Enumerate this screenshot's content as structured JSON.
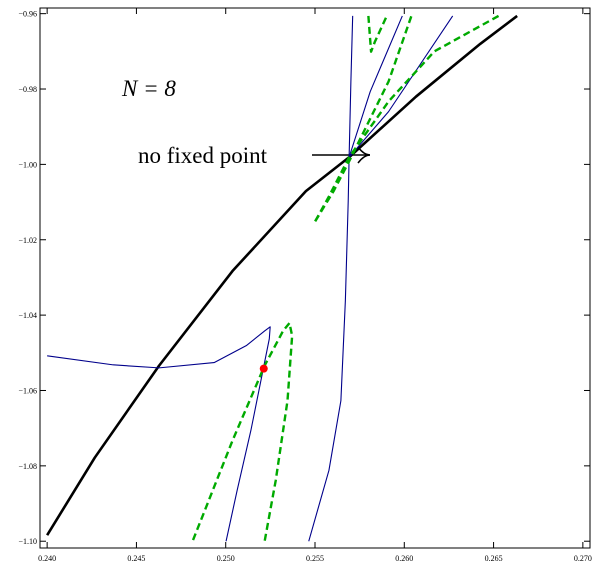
{
  "chart_data": {
    "type": "line",
    "annotations": [
      "N = 8",
      "no fixed point"
    ],
    "xlim": [
      0.2396,
      0.2704
    ],
    "ylim": [
      -1.1018,
      -0.9585
    ],
    "xticks": [
      {
        "value": 0.24,
        "label": "0.240"
      },
      {
        "value": 0.245,
        "label": "0.245"
      },
      {
        "value": 0.25,
        "label": "0.250"
      },
      {
        "value": 0.255,
        "label": "0.255"
      },
      {
        "value": 0.26,
        "label": "0.260"
      },
      {
        "value": 0.265,
        "label": "0.265"
      },
      {
        "value": 0.27,
        "label": "0.270"
      }
    ],
    "yticks": [
      {
        "value": -0.96,
        "label": "−0.96"
      },
      {
        "value": -0.98,
        "label": "−0.98"
      },
      {
        "value": -1.0,
        "label": "−1.00"
      },
      {
        "value": -1.02,
        "label": "−1.02"
      },
      {
        "value": -1.04,
        "label": "−1.04"
      },
      {
        "value": -1.06,
        "label": "−1.06"
      },
      {
        "value": -1.08,
        "label": "−1.08"
      },
      {
        "value": -1.1,
        "label": "−1.10"
      }
    ],
    "series": [
      {
        "color": "#000000",
        "dashed": false,
        "x": [
          0.24,
          0.24267,
          0.24627,
          0.25038,
          0.25449,
          0.25691,
          0.26066,
          0.26426,
          0.26632
        ],
        "y": [
          -1.0984,
          -1.0778,
          -1.0534,
          -1.0283,
          -1.0071,
          -0.9981,
          -0.982,
          -0.968,
          -0.9606
        ]
      },
      {
        "color": "#00008b",
        "dashed": false,
        "x": [
          0.24,
          0.2437,
          0.24627,
          0.24935,
          0.25115,
          0.25218,
          0.25249,
          0.25244,
          0.25208,
          0.25141,
          0.25064,
          0.25002
        ],
        "y": [
          -1.0508,
          -1.0532,
          -1.054,
          -1.0526,
          -1.0481,
          -1.0442,
          -1.0431,
          -1.0463,
          -1.0548,
          -1.0706,
          -1.0865,
          -1.1
        ]
      },
      {
        "color": "#00008b",
        "dashed": false,
        "x": [
          0.25465,
          0.25578,
          0.25645,
          0.2567,
          0.25686,
          0.25691,
          0.25701,
          0.25711
        ],
        "y": [
          -1.1,
          -1.0812,
          -1.0627,
          -1.0362,
          -1.0098,
          -0.9981,
          -0.978,
          -0.9606
        ]
      },
      {
        "color": "#00008b",
        "dashed": false,
        "x": [
          0.25691,
          0.25809,
          0.25989
        ],
        "y": [
          -0.9981,
          -0.9807,
          -0.9606
        ]
      },
      {
        "color": "#00008b",
        "dashed": false,
        "x": [
          0.25691,
          0.25912,
          0.26271
        ],
        "y": [
          -0.9981,
          -0.986,
          -0.9606
        ]
      },
      {
        "color": "#00aa00",
        "dashed": true,
        "x": [
          0.24817,
          0.25038,
          0.25218,
          0.25321,
          0.25357,
          0.25372,
          0.25346,
          0.2528,
          0.25218
        ],
        "y": [
          -1.0997,
          -1.0733,
          -1.0534,
          -1.0442,
          -1.0421,
          -1.0455,
          -1.0627,
          -1.0839,
          -1.1
        ]
      },
      {
        "color": "#00aa00",
        "dashed": true,
        "x": [
          0.25501,
          0.25578,
          0.25691,
          0.25912,
          0.26169,
          0.26528
        ],
        "y": [
          -1.0151,
          -1.0085,
          -0.9981,
          -0.9833,
          -0.97,
          -0.9606
        ]
      },
      {
        "color": "#00aa00",
        "dashed": true,
        "x": [
          0.25501,
          0.25604,
          0.25691,
          0.25912,
          0.2604
        ],
        "y": [
          -1.0151,
          -1.0071,
          -0.9992,
          -0.978,
          -0.9606
        ]
      },
      {
        "color": "#00aa00",
        "dashed": true,
        "x": [
          0.25799,
          0.25814,
          0.25835,
          0.25902
        ],
        "y": [
          -0.9606,
          -0.9701,
          -0.9675,
          -0.9606
        ]
      }
    ],
    "points": {
      "color": "#ff0000",
      "x": [
        0.25213
      ],
      "y": [
        -1.0542
      ]
    }
  }
}
